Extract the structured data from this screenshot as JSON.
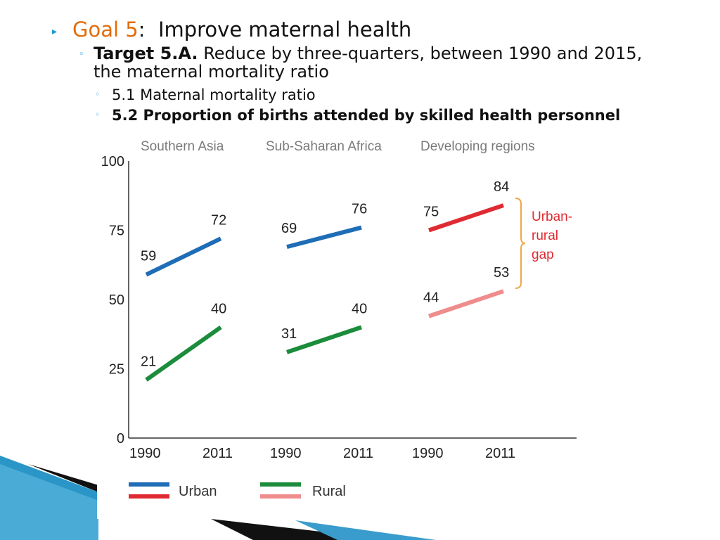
{
  "slide": {
    "goal_label": "Goal 5",
    "goal_sep": ":",
    "goal_title": "Improve maternal health",
    "target_label": "Target 5.A.",
    "target_text": "Reduce by three-quarters, between 1990 and 2015, the maternal mortality ratio",
    "indicator_1": "5.1 Maternal mortality ratio",
    "indicator_2": "5.2 Proportion of births attended by skilled health personnel",
    "bullet_arrow": "▸",
    "bullet_circle": "◦"
  },
  "colors": {
    "goal_accent": "#e36c0a",
    "urban_blue": "#1f6db6",
    "urban_red": "#e02a32",
    "rural_green": "#1b8c3b",
    "rural_pink": "#ef8c8c",
    "gap_label": "#e02a32"
  },
  "chart_data": {
    "type": "line",
    "ylim": [
      0,
      100
    ],
    "yticks": [
      "0",
      "25",
      "50",
      "75",
      "100"
    ],
    "panels": [
      {
        "title": "Southern Asia",
        "x": [
          "1990",
          "2011"
        ],
        "series": [
          {
            "name": "Urban",
            "values": [
              59,
              72
            ]
          },
          {
            "name": "Rural",
            "values": [
              21,
              40
            ]
          }
        ]
      },
      {
        "title": "Sub-Saharan Africa",
        "x": [
          "1990",
          "2011"
        ],
        "series": [
          {
            "name": "Urban",
            "values": [
              69,
              76
            ]
          },
          {
            "name": "Rural",
            "values": [
              31,
              40
            ]
          }
        ]
      },
      {
        "title": "Developing regions",
        "x": [
          "1990",
          "2011"
        ],
        "series": [
          {
            "name": "Urban",
            "values": [
              75,
              84
            ]
          },
          {
            "name": "Rural",
            "values": [
              44,
              53
            ]
          }
        ]
      }
    ],
    "legend": [
      "Urban",
      "Rural"
    ],
    "annotation": [
      "Urban-",
      "rural",
      "gap"
    ]
  }
}
